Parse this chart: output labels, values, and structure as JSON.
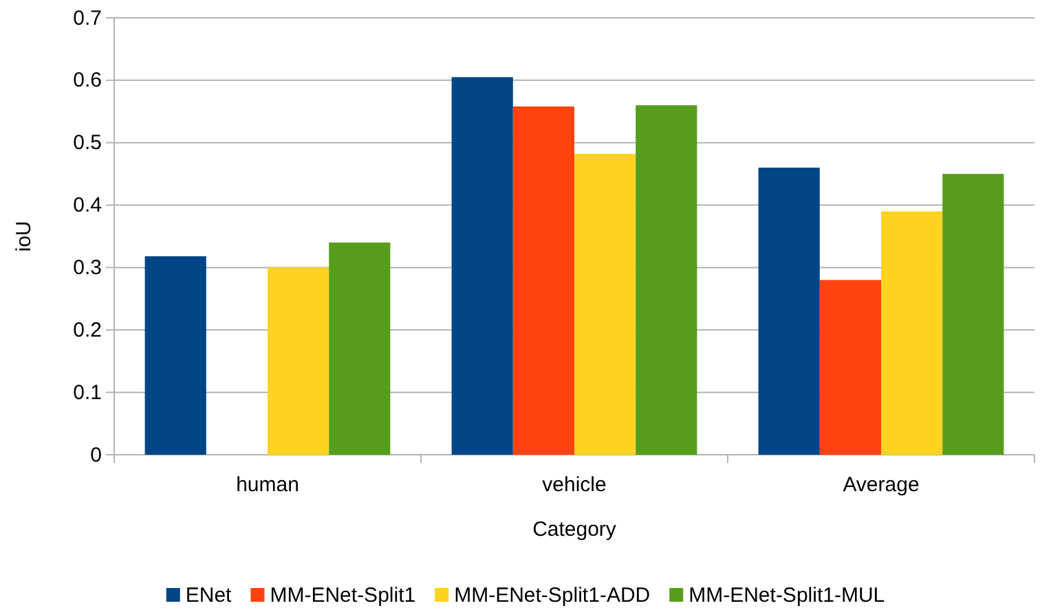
{
  "chart_data": {
    "type": "bar",
    "xlabel": "Category",
    "ylabel": "ioU",
    "categories": [
      "human",
      "vehicle",
      "Average"
    ],
    "series": [
      {
        "name": "ENet",
        "color": "#004586",
        "values": [
          0.318,
          0.605,
          0.46
        ]
      },
      {
        "name": "MM-ENet-Split1",
        "color": "#ff420e",
        "values": [
          null,
          0.558,
          0.28
        ]
      },
      {
        "name": "MM-ENet-Split1-ADD",
        "color": "#ffd320",
        "values": [
          0.3,
          0.482,
          0.39
        ]
      },
      {
        "name": "MM-ENet-Split1-MUL",
        "color": "#579d1c",
        "values": [
          0.34,
          0.56,
          0.45
        ]
      }
    ],
    "ylim": [
      0,
      0.7
    ],
    "yticks": [
      0,
      0.1,
      0.2,
      0.3,
      0.4,
      0.5,
      0.6,
      0.7
    ],
    "grid": "y",
    "legend": "bottom"
  }
}
